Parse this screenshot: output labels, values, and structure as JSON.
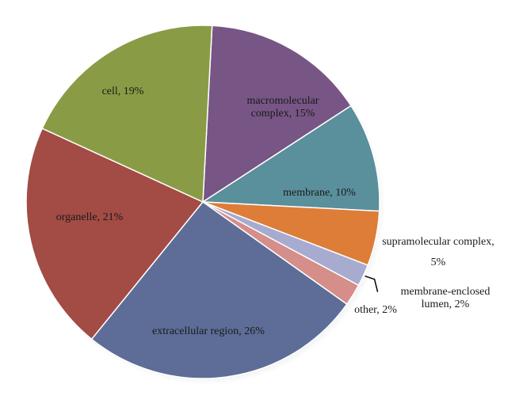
{
  "chart_data": {
    "type": "pie",
    "title": "",
    "slices": [
      {
        "label_lines": [
          "macromolecular",
          "complex, 15%"
        ],
        "value": 15,
        "color": "#775585"
      },
      {
        "label_lines": [
          "membrane, 10%"
        ],
        "value": 10,
        "color": "#5a8f9c"
      },
      {
        "label_lines": [
          "supramolecular complex,",
          "5%"
        ],
        "value": 5,
        "color": "#dd7d37"
      },
      {
        "label_lines": [
          "membrane-enclosed",
          "lumen, 2%"
        ],
        "value": 2,
        "color": "#a7abd0"
      },
      {
        "label_lines": [
          "other, 2%"
        ],
        "value": 2,
        "color": "#d58e89"
      },
      {
        "label_lines": [
          "extracellular region, 26%"
        ],
        "value": 26,
        "color": "#5d6d97"
      },
      {
        "label_lines": [
          "organelle, 21%"
        ],
        "value": 21,
        "color": "#a34b45"
      },
      {
        "label_lines": [
          "cell, 19%"
        ],
        "value": 19,
        "color": "#899c45"
      }
    ]
  }
}
